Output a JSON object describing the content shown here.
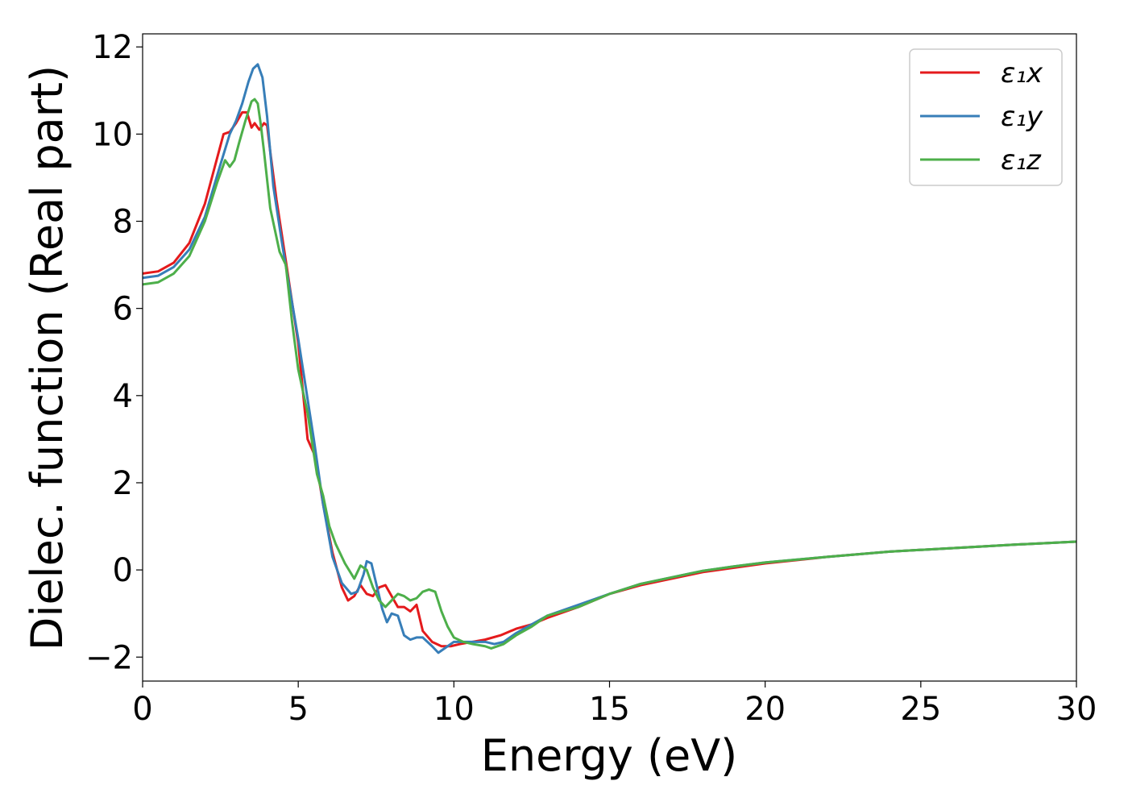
{
  "chart_data": {
    "type": "line",
    "xlabel": "Energy (eV)",
    "ylabel": "Dielec. function (Real part)",
    "xlim": [
      0,
      30
    ],
    "ylim": [
      -2.55,
      12.3
    ],
    "xticks": [
      0,
      5,
      10,
      15,
      20,
      25,
      30
    ],
    "xtick_labels": [
      "0",
      "5",
      "10",
      "15",
      "20",
      "25",
      "30"
    ],
    "yticks": [
      -2,
      0,
      2,
      4,
      6,
      8,
      10,
      12
    ],
    "ytick_labels": [
      "−2",
      "0",
      "2",
      "4",
      "6",
      "8",
      "10",
      "12"
    ],
    "grid": false,
    "legend_position": "top-right",
    "series": [
      {
        "name": "ε₁x",
        "color": "#e41a1c",
        "x": [
          0,
          0.5,
          1.0,
          1.5,
          2.0,
          2.3,
          2.6,
          2.8,
          3.0,
          3.2,
          3.35,
          3.5,
          3.6,
          3.75,
          3.9,
          4.0,
          4.1,
          4.3,
          4.6,
          5.0,
          5.3,
          5.55,
          5.8,
          6.1,
          6.4,
          6.6,
          6.8,
          7.0,
          7.2,
          7.4,
          7.6,
          7.8,
          8.0,
          8.2,
          8.4,
          8.6,
          8.8,
          9.0,
          9.3,
          9.6,
          9.9,
          10.2,
          10.6,
          11.0,
          11.5,
          12.0,
          12.5,
          13.0,
          14.0,
          15.0,
          16.0,
          17.0,
          18.0,
          19.0,
          20.0,
          22.0,
          24.0,
          26.0,
          28.0,
          30.0
        ],
        "y": [
          6.8,
          6.85,
          7.05,
          7.5,
          8.4,
          9.2,
          10.0,
          10.05,
          10.25,
          10.5,
          10.5,
          10.15,
          10.25,
          10.1,
          10.25,
          10.2,
          9.6,
          8.5,
          7.1,
          5.2,
          3.0,
          2.6,
          1.5,
          0.4,
          -0.4,
          -0.7,
          -0.6,
          -0.35,
          -0.55,
          -0.6,
          -0.4,
          -0.35,
          -0.6,
          -0.85,
          -0.85,
          -0.95,
          -0.8,
          -1.4,
          -1.65,
          -1.75,
          -1.75,
          -1.7,
          -1.65,
          -1.6,
          -1.5,
          -1.35,
          -1.25,
          -1.1,
          -0.85,
          -0.55,
          -0.35,
          -0.2,
          -0.05,
          0.05,
          0.15,
          0.3,
          0.42,
          0.5,
          0.58,
          0.65
        ]
      },
      {
        "name": "ε₁y",
        "color": "#377eb8",
        "x": [
          0,
          0.5,
          1.0,
          1.5,
          2.0,
          2.5,
          2.8,
          3.0,
          3.2,
          3.4,
          3.55,
          3.7,
          3.85,
          4.0,
          4.2,
          4.5,
          5.0,
          5.5,
          5.8,
          6.1,
          6.4,
          6.7,
          6.9,
          7.1,
          7.2,
          7.35,
          7.5,
          7.7,
          7.85,
          8.0,
          8.2,
          8.4,
          8.6,
          8.8,
          9.0,
          9.3,
          9.5,
          9.8,
          10.0,
          10.3,
          10.6,
          11.0,
          11.3,
          11.6,
          12.0,
          12.5,
          13.0,
          14.0,
          15.0,
          16.0,
          17.0,
          18.0,
          19.0,
          20.0,
          22.0,
          24.0,
          26.0,
          28.0,
          30.0
        ],
        "y": [
          6.7,
          6.75,
          6.95,
          7.35,
          8.1,
          9.3,
          10.0,
          10.3,
          10.7,
          11.2,
          11.5,
          11.6,
          11.3,
          10.4,
          8.8,
          7.4,
          5.3,
          3.0,
          1.5,
          0.3,
          -0.3,
          -0.55,
          -0.5,
          -0.1,
          0.2,
          0.15,
          -0.3,
          -0.9,
          -1.2,
          -1.0,
          -1.05,
          -1.5,
          -1.6,
          -1.55,
          -1.55,
          -1.75,
          -1.9,
          -1.75,
          -1.65,
          -1.65,
          -1.65,
          -1.65,
          -1.7,
          -1.65,
          -1.45,
          -1.25,
          -1.05,
          -0.8,
          -0.55,
          -0.32,
          -0.17,
          -0.02,
          0.08,
          0.17,
          0.3,
          0.42,
          0.5,
          0.58,
          0.65
        ]
      },
      {
        "name": "ε₁z",
        "color": "#4daf4a",
        "x": [
          0,
          0.5,
          1.0,
          1.5,
          2.0,
          2.4,
          2.65,
          2.8,
          2.95,
          3.1,
          3.3,
          3.5,
          3.6,
          3.7,
          3.8,
          3.9,
          4.1,
          4.4,
          4.6,
          4.8,
          5.0,
          5.3,
          5.6,
          5.8,
          6.0,
          6.2,
          6.5,
          6.8,
          7.0,
          7.2,
          7.4,
          7.6,
          7.8,
          8.0,
          8.2,
          8.4,
          8.6,
          8.8,
          9.0,
          9.2,
          9.4,
          9.6,
          9.8,
          10.0,
          10.3,
          10.6,
          11.0,
          11.2,
          11.6,
          12.0,
          12.5,
          13.0,
          14.0,
          15.0,
          16.0,
          17.0,
          18.0,
          19.0,
          20.0,
          22.0,
          24.0,
          26.0,
          28.0,
          30.0
        ],
        "y": [
          6.55,
          6.6,
          6.8,
          7.2,
          8.0,
          8.9,
          9.4,
          9.25,
          9.4,
          9.8,
          10.3,
          10.75,
          10.8,
          10.7,
          10.2,
          9.6,
          8.3,
          7.3,
          7.0,
          5.7,
          4.6,
          3.6,
          2.2,
          1.7,
          1.0,
          0.6,
          0.15,
          -0.2,
          0.1,
          0.0,
          -0.4,
          -0.7,
          -0.85,
          -0.7,
          -0.55,
          -0.6,
          -0.7,
          -0.65,
          -0.5,
          -0.45,
          -0.5,
          -0.95,
          -1.3,
          -1.55,
          -1.65,
          -1.7,
          -1.75,
          -1.8,
          -1.7,
          -1.5,
          -1.3,
          -1.05,
          -0.85,
          -0.55,
          -0.32,
          -0.17,
          -0.02,
          0.08,
          0.17,
          0.3,
          0.42,
          0.5,
          0.58,
          0.65
        ]
      }
    ]
  }
}
